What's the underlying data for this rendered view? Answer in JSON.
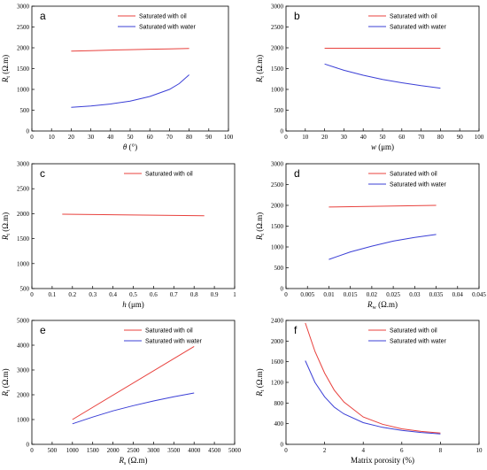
{
  "chart_data": [
    {
      "type": "line",
      "panel_label": "a",
      "xlabel": "θ (°)",
      "ylabel": "Rt (Ω.m)",
      "ylabel_main": "R",
      "ylabel_sub": "t",
      "ylabel_unit": " (Ω.m)",
      "xlim": [
        0,
        100
      ],
      "ylim": [
        0,
        3000
      ],
      "xticks": [
        0,
        10,
        20,
        30,
        40,
        50,
        60,
        70,
        80,
        90,
        100
      ],
      "yticks": [
        0,
        500,
        1000,
        1500,
        2000,
        2500,
        3000
      ],
      "series": [
        {
          "name": "Saturated with oil",
          "color": "#e8413d",
          "x": [
            20,
            30,
            40,
            50,
            60,
            70,
            80
          ],
          "y": [
            1920,
            1930,
            1945,
            1955,
            1965,
            1975,
            1985
          ]
        },
        {
          "name": "Saturated with water",
          "color": "#3b3fd6",
          "x": [
            20,
            30,
            40,
            50,
            60,
            70,
            75,
            80
          ],
          "y": [
            570,
            600,
            650,
            720,
            830,
            1000,
            1140,
            1350
          ]
        }
      ]
    },
    {
      "type": "line",
      "panel_label": "b",
      "xlabel": "w (μm)",
      "ylabel": "Rt (Ω.m)",
      "ylabel_main": "R",
      "ylabel_sub": "t",
      "ylabel_unit": " (Ω.m)",
      "xlim": [
        0,
        100
      ],
      "ylim": [
        0,
        3000
      ],
      "xticks": [
        0,
        10,
        20,
        30,
        40,
        50,
        60,
        70,
        80,
        90,
        100
      ],
      "yticks": [
        0,
        500,
        1000,
        1500,
        2000,
        2500,
        3000
      ],
      "series": [
        {
          "name": "Saturated with oil",
          "color": "#e8413d",
          "x": [
            20,
            80
          ],
          "y": [
            1990,
            1990
          ]
        },
        {
          "name": "Saturated with water",
          "color": "#3b3fd6",
          "x": [
            20,
            30,
            40,
            50,
            60,
            70,
            80
          ],
          "y": [
            1610,
            1460,
            1340,
            1240,
            1160,
            1090,
            1030
          ]
        }
      ]
    },
    {
      "type": "line",
      "panel_label": "c",
      "xlabel": "h (μm)",
      "ylabel": "Rt (Ω.m)",
      "ylabel_main": "R",
      "ylabel_sub": "t",
      "ylabel_unit": " (Ω.m)",
      "xlim": [
        0,
        1
      ],
      "ylim": [
        500,
        3000
      ],
      "xticks": [
        0,
        0.1,
        0.2,
        0.3,
        0.4,
        0.5,
        0.6,
        0.7,
        0.8,
        0.9,
        1
      ],
      "xtick_labels": [
        "0",
        "0.1",
        "0.2",
        "0.3",
        "0.4",
        "0.5",
        "0.6",
        "0.7",
        "0.8",
        "0.9",
        "1"
      ],
      "yticks": [
        500,
        1000,
        1500,
        2000,
        2500,
        3000
      ],
      "series": [
        {
          "name": "Saturated with oil",
          "color": "#e8413d",
          "x": [
            0.15,
            0.85
          ],
          "y": [
            1990,
            1960
          ]
        }
      ]
    },
    {
      "type": "line",
      "panel_label": "d",
      "xlabel": "Rw (Ω.m)",
      "ylabel": "Rt (Ω.m)",
      "ylabel_main": "R",
      "ylabel_sub": "t",
      "ylabel_unit": " (Ω.m)",
      "xlabel_main": "R",
      "xlabel_sub": "w",
      "xlabel_unit": " (Ω.m)",
      "xlim": [
        0,
        0.045
      ],
      "ylim": [
        0,
        3000
      ],
      "xticks": [
        0,
        0.005,
        0.01,
        0.015,
        0.02,
        0.025,
        0.03,
        0.035,
        0.04,
        0.045
      ],
      "xtick_labels": [
        "0",
        "0.005",
        "0.01",
        "0.015",
        "0.02",
        "0.025",
        "0.03",
        "0.035",
        "0.04",
        "0.045"
      ],
      "yticks": [
        0,
        500,
        1000,
        1500,
        2000,
        2500,
        3000
      ],
      "series": [
        {
          "name": "Saturated with oil",
          "color": "#e8413d",
          "x": [
            0.01,
            0.035
          ],
          "y": [
            1960,
            2000
          ]
        },
        {
          "name": "Saturated with water",
          "color": "#3b3fd6",
          "x": [
            0.01,
            0.015,
            0.02,
            0.025,
            0.03,
            0.035
          ],
          "y": [
            700,
            880,
            1020,
            1140,
            1230,
            1300
          ]
        }
      ]
    },
    {
      "type": "line",
      "panel_label": "e",
      "xlabel": "Rs (Ω.m)",
      "ylabel": "Rt (Ω.m)",
      "ylabel_main": "R",
      "ylabel_sub": "t",
      "ylabel_unit": " (Ω.m)",
      "xlabel_main": "R",
      "xlabel_sub": "s",
      "xlabel_unit": " (Ω.m)",
      "xlim": [
        0,
        5000
      ],
      "ylim": [
        0,
        5000
      ],
      "xticks": [
        0,
        500,
        1000,
        1500,
        2000,
        2500,
        3000,
        3500,
        4000,
        4500,
        5000
      ],
      "yticks": [
        0,
        1000,
        2000,
        3000,
        4000,
        5000
      ],
      "series": [
        {
          "name": "Saturated with oil",
          "color": "#e8413d",
          "x": [
            1000,
            4000
          ],
          "y": [
            1000,
            3950
          ]
        },
        {
          "name": "Saturated with water",
          "color": "#3b3fd6",
          "x": [
            1000,
            1500,
            2000,
            2500,
            3000,
            3500,
            4000
          ],
          "y": [
            830,
            1100,
            1350,
            1560,
            1750,
            1920,
            2070
          ]
        }
      ]
    },
    {
      "type": "line",
      "panel_label": "f",
      "xlabel": "Matrix porosity (%)",
      "ylabel": "Rt (Ω.m)",
      "ylabel_main": "R",
      "ylabel_sub": "t",
      "ylabel_unit": " (Ω.m)",
      "xlim": [
        0,
        10
      ],
      "ylim": [
        0,
        2400
      ],
      "xticks": [
        0,
        2,
        4,
        6,
        8,
        10
      ],
      "yticks": [
        0,
        400,
        800,
        1200,
        1600,
        2000,
        2400
      ],
      "series": [
        {
          "name": "Saturated with oil",
          "color": "#e8413d",
          "x": [
            1,
            1.5,
            2,
            2.5,
            3,
            4,
            5,
            6,
            7,
            8
          ],
          "y": [
            2350,
            1800,
            1380,
            1050,
            820,
            530,
            390,
            300,
            250,
            220
          ]
        },
        {
          "name": "Saturated with water",
          "color": "#3b3fd6",
          "x": [
            1,
            1.5,
            2,
            2.5,
            3,
            4,
            5,
            6,
            7,
            8
          ],
          "y": [
            1620,
            1200,
            920,
            720,
            590,
            420,
            330,
            270,
            230,
            200
          ]
        }
      ]
    }
  ]
}
